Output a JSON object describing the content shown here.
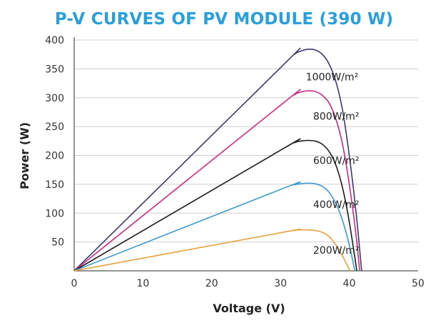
{
  "colors": {
    "title": "#2b9fd9",
    "grid": "#cfcfcf",
    "axis": "#555555",
    "background": "#ffffff"
  },
  "chart_data": {
    "type": "line",
    "title": "P-V CURVES OF PV MODULE (390 W)",
    "xlabel": "Voltage (V)",
    "ylabel": "Power (W)",
    "xlim": [
      0,
      50
    ],
    "ylim": [
      0,
      400
    ],
    "xticks": [
      0,
      10,
      20,
      30,
      40,
      50
    ],
    "yticks": [
      50,
      100,
      150,
      200,
      250,
      300,
      350,
      400
    ],
    "grid": "horizontal",
    "series": [
      {
        "name": "1000W/m²",
        "color": "#3a3a6e",
        "label_at": [
          37.5,
          330
        ],
        "x": [
          0,
          30,
          32,
          33,
          34,
          35,
          36,
          37,
          38,
          39,
          40,
          41,
          41.8
        ],
        "y": [
          0,
          352,
          375,
          381,
          384,
          383,
          376,
          360,
          330,
          280,
          200,
          100,
          0
        ]
      },
      {
        "name": "800W/m²",
        "color": "#cc2a7e",
        "label_at": [
          38.1,
          262
        ],
        "x": [
          0,
          30,
          32,
          33,
          34,
          35,
          36,
          37,
          38,
          39,
          40,
          41,
          41.5
        ],
        "y": [
          0,
          287,
          305,
          310,
          312,
          311,
          305,
          292,
          265,
          220,
          150,
          60,
          0
        ]
      },
      {
        "name": "600W/m²",
        "color": "#1c1c1c",
        "label_at": [
          38.1,
          185
        ],
        "x": [
          0,
          30,
          32,
          33,
          34,
          35,
          36,
          37,
          38,
          39,
          40,
          41.1
        ],
        "y": [
          0,
          209,
          222,
          225,
          226,
          225,
          220,
          208,
          185,
          145,
          85,
          0
        ]
      },
      {
        "name": "400W/m²",
        "color": "#3b9bd1",
        "label_at": [
          38.1,
          109
        ],
        "x": [
          0,
          30,
          32,
          33,
          34,
          35,
          36,
          37,
          38,
          39,
          40,
          40.8
        ],
        "y": [
          0,
          141,
          149,
          151,
          152,
          151,
          147,
          137,
          118,
          88,
          45,
          0
        ]
      },
      {
        "name": "200W/m²",
        "color": "#e8a13c",
        "label_at": [
          38.1,
          30
        ],
        "x": [
          0,
          30,
          32,
          33,
          34,
          35,
          36,
          37,
          38,
          39,
          40.1
        ],
        "y": [
          0,
          66,
          70,
          71,
          71,
          70,
          67,
          60,
          46,
          26,
          0
        ]
      }
    ]
  }
}
